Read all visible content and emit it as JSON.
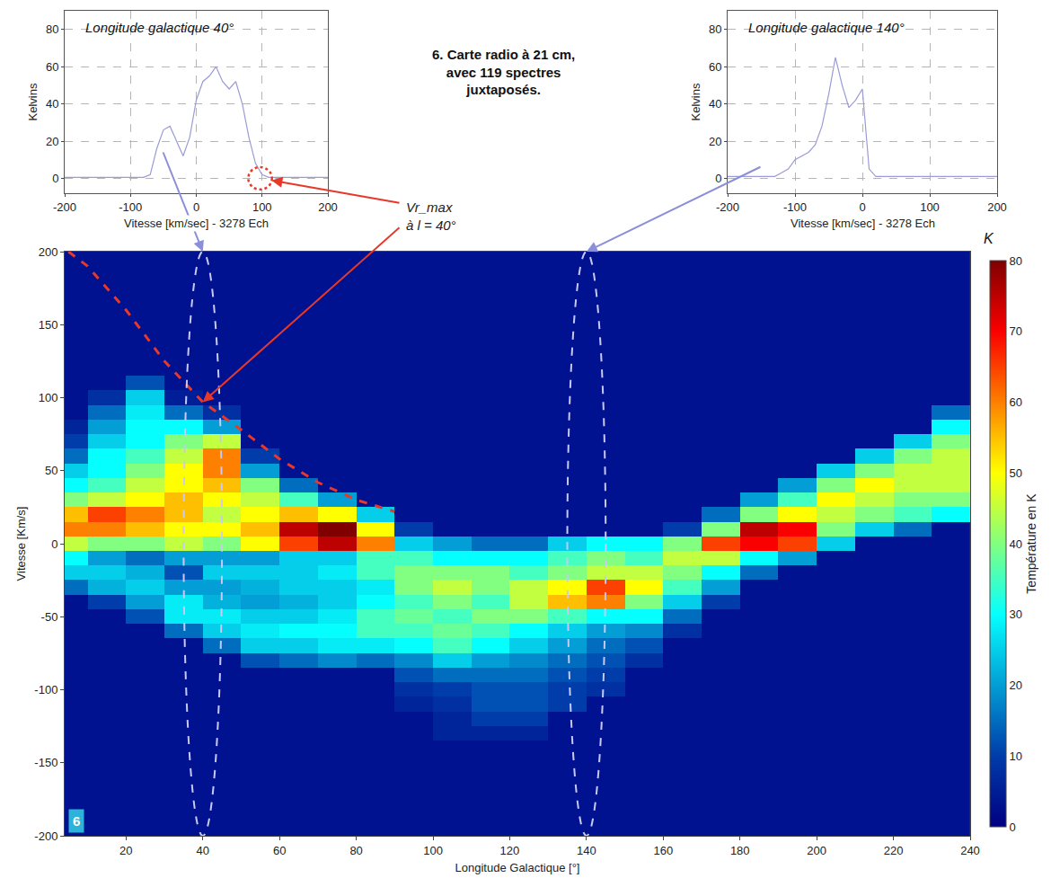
{
  "chart_data": [
    {
      "type": "line",
      "title": "Longitude galactique 40°",
      "longitude": 40,
      "x": [
        -200,
        -190,
        -180,
        -170,
        -160,
        -150,
        -140,
        -130,
        -120,
        -110,
        -100,
        -90,
        -80,
        -70,
        -60,
        -50,
        -40,
        -30,
        -20,
        -10,
        0,
        10,
        20,
        30,
        40,
        50,
        60,
        70,
        80,
        90,
        100,
        110,
        120,
        130,
        140,
        150,
        160,
        170,
        180,
        190,
        200
      ],
      "values": [
        0.5,
        0.5,
        0.5,
        0.5,
        0.5,
        0.5,
        0.5,
        0.5,
        0.5,
        0.5,
        0.5,
        0.5,
        0.5,
        2,
        16,
        26,
        28,
        20,
        12,
        22,
        42,
        52,
        55,
        60,
        52,
        48,
        52,
        40,
        22,
        8,
        2,
        0.5,
        0.5,
        0.5,
        0.5,
        0.5,
        0.5,
        0.5,
        0.5,
        0.5,
        0.5
      ],
      "color": "#9b9bd6",
      "line_style": "solid",
      "xlabel": "Vitesse [km/sec] - 3278 Ech",
      "ylabel": "Kelvins",
      "xlim": [
        -200,
        200
      ],
      "xticks": [
        -200,
        -100,
        0,
        100,
        200
      ],
      "ylim": [
        -8,
        90
      ],
      "yticks": [
        0,
        20,
        40,
        60,
        80
      ],
      "grid": true
    },
    {
      "type": "line",
      "title": "Longitude galactique 140°",
      "longitude": 140,
      "x": [
        -200,
        -190,
        -180,
        -170,
        -160,
        -150,
        -140,
        -130,
        -120,
        -110,
        -100,
        -90,
        -80,
        -70,
        -60,
        -50,
        -40,
        -30,
        -20,
        -10,
        0,
        10,
        20,
        30,
        40,
        50,
        60,
        70,
        80,
        90,
        100,
        110,
        120,
        130,
        140,
        150,
        160,
        170,
        180,
        190,
        200
      ],
      "values": [
        1,
        1,
        1,
        1,
        1,
        1,
        1,
        1,
        3,
        5,
        10,
        12,
        14,
        18,
        28,
        45,
        65,
        50,
        38,
        42,
        48,
        5,
        1,
        1,
        1,
        1,
        1,
        1,
        1,
        1,
        1,
        1,
        1,
        1,
        1,
        1,
        1,
        1,
        1,
        1,
        1
      ],
      "color": "#9b9bd6",
      "line_style": "solid",
      "xlabel": "Vitesse [km/sec] - 3278 Ech",
      "ylabel": "Kelvins",
      "xlim": [
        -200,
        200
      ],
      "xticks": [
        -200,
        -100,
        0,
        100,
        200
      ],
      "ylim": [
        -8,
        90
      ],
      "yticks": [
        0,
        20,
        40,
        60,
        80
      ],
      "grid": true
    },
    {
      "type": "heatmap",
      "title": "6. Carte radio à 21 cm, avec 119 spectres juxtaposés.",
      "xlabel": "Longitude Galactique [°]",
      "ylabel": "Vitesse [Km/s]",
      "xlim": [
        4,
        240
      ],
      "xticks": [
        20,
        40,
        60,
        80,
        100,
        120,
        140,
        160,
        180,
        200,
        220,
        240
      ],
      "ylim": [
        -200,
        200
      ],
      "yticks": [
        -200,
        -150,
        -100,
        -50,
        0,
        50,
        100,
        150,
        200
      ],
      "grid": false,
      "x": [
        5,
        15,
        25,
        35,
        45,
        55,
        65,
        75,
        85,
        95,
        105,
        115,
        125,
        135,
        145,
        155,
        165,
        175,
        185,
        195,
        205,
        215,
        225,
        235
      ],
      "y": [
        -200,
        -190,
        -180,
        -170,
        -160,
        -150,
        -140,
        -130,
        -120,
        -110,
        -100,
        -90,
        -80,
        -70,
        -60,
        -50,
        -40,
        -30,
        -20,
        -10,
        0,
        10,
        20,
        30,
        40,
        50,
        60,
        70,
        80,
        90,
        100,
        110,
        120,
        130,
        140,
        150,
        160,
        170,
        180,
        190,
        200
      ],
      "z": [
        [
          3,
          3,
          3,
          3,
          3,
          3,
          3,
          3,
          3,
          3,
          3,
          3,
          3,
          3,
          3,
          3,
          3,
          3,
          3,
          3,
          3,
          3,
          3,
          3
        ],
        [
          3,
          3,
          3,
          3,
          3,
          3,
          3,
          3,
          3,
          3,
          3,
          3,
          3,
          3,
          3,
          3,
          3,
          3,
          3,
          3,
          3,
          3,
          3,
          3
        ],
        [
          3,
          3,
          3,
          3,
          3,
          3,
          3,
          3,
          3,
          3,
          3,
          3,
          3,
          3,
          3,
          3,
          3,
          3,
          3,
          3,
          3,
          3,
          3,
          3
        ],
        [
          3,
          3,
          3,
          3,
          3,
          3,
          3,
          3,
          3,
          3,
          3,
          3,
          3,
          3,
          3,
          3,
          3,
          3,
          3,
          3,
          3,
          3,
          3,
          3
        ],
        [
          3,
          3,
          3,
          3,
          3,
          3,
          3,
          3,
          3,
          3,
          3,
          3,
          3,
          3,
          3,
          3,
          3,
          3,
          3,
          3,
          3,
          3,
          3,
          3
        ],
        [
          3,
          3,
          3,
          3,
          3,
          3,
          3,
          3,
          3,
          3,
          3,
          3,
          3,
          3,
          3,
          3,
          3,
          3,
          3,
          3,
          3,
          3,
          3,
          3
        ],
        [
          3,
          3,
          3,
          3,
          3,
          3,
          3,
          3,
          3,
          3,
          3,
          3,
          3,
          3,
          3,
          3,
          3,
          3,
          3,
          3,
          3,
          3,
          3,
          3
        ],
        [
          3,
          3,
          3,
          3,
          3,
          3,
          3,
          3,
          3,
          3,
          6,
          6,
          6,
          3,
          3,
          3,
          3,
          3,
          3,
          3,
          3,
          3,
          3,
          3
        ],
        [
          3,
          3,
          3,
          3,
          3,
          3,
          3,
          3,
          3,
          3,
          6,
          10,
          10,
          3,
          3,
          3,
          3,
          3,
          3,
          3,
          3,
          3,
          3,
          3
        ],
        [
          3,
          3,
          3,
          3,
          3,
          3,
          3,
          3,
          3,
          6,
          8,
          12,
          12,
          10,
          3,
          3,
          3,
          3,
          3,
          3,
          3,
          3,
          3,
          3
        ],
        [
          3,
          3,
          3,
          3,
          3,
          3,
          3,
          3,
          3,
          8,
          10,
          12,
          12,
          10,
          8,
          3,
          3,
          3,
          3,
          3,
          3,
          3,
          3,
          3
        ],
        [
          3,
          3,
          3,
          3,
          3,
          3,
          3,
          3,
          3,
          12,
          15,
          15,
          15,
          12,
          10,
          3,
          3,
          3,
          3,
          3,
          3,
          3,
          3,
          3
        ],
        [
          3,
          3,
          3,
          3,
          3,
          12,
          15,
          18,
          15,
          18,
          25,
          20,
          18,
          15,
          12,
          8,
          3,
          3,
          3,
          3,
          3,
          3,
          3,
          3
        ],
        [
          3,
          3,
          3,
          3,
          15,
          25,
          25,
          28,
          28,
          30,
          35,
          30,
          25,
          20,
          15,
          12,
          3,
          3,
          3,
          3,
          3,
          3,
          3,
          3
        ],
        [
          3,
          3,
          3,
          15,
          25,
          28,
          30,
          30,
          35,
          35,
          38,
          35,
          30,
          25,
          20,
          18,
          8,
          3,
          3,
          3,
          3,
          3,
          3,
          3
        ],
        [
          3,
          3,
          12,
          28,
          28,
          25,
          25,
          28,
          35,
          38,
          35,
          40,
          40,
          35,
          30,
          30,
          15,
          3,
          3,
          3,
          3,
          3,
          3,
          3
        ],
        [
          3,
          10,
          20,
          28,
          22,
          20,
          22,
          25,
          30,
          35,
          40,
          35,
          45,
          55,
          60,
          40,
          25,
          10,
          3,
          3,
          3,
          3,
          3,
          3
        ],
        [
          15,
          22,
          25,
          20,
          20,
          22,
          25,
          25,
          28,
          40,
          45,
          40,
          45,
          50,
          65,
          50,
          35,
          20,
          3,
          3,
          3,
          3,
          3,
          3
        ],
        [
          25,
          25,
          22,
          12,
          25,
          25,
          25,
          28,
          35,
          40,
          40,
          40,
          35,
          40,
          45,
          45,
          40,
          30,
          15,
          3,
          3,
          3,
          3,
          3
        ],
        [
          30,
          20,
          15,
          20,
          20,
          20,
          25,
          25,
          35,
          35,
          30,
          30,
          30,
          35,
          40,
          35,
          45,
          45,
          30,
          20,
          3,
          3,
          3,
          3
        ],
        [
          45,
          40,
          40,
          45,
          40,
          50,
          65,
          75,
          60,
          25,
          20,
          15,
          15,
          25,
          30,
          30,
          40,
          65,
          70,
          65,
          25,
          3,
          3,
          3
        ],
        [
          60,
          60,
          55,
          50,
          50,
          55,
          75,
          80,
          50,
          10,
          3,
          3,
          3,
          3,
          3,
          3,
          10,
          40,
          75,
          70,
          40,
          25,
          15,
          3
        ],
        [
          55,
          65,
          60,
          55,
          45,
          50,
          55,
          50,
          25,
          3,
          3,
          3,
          3,
          3,
          3,
          3,
          3,
          15,
          40,
          50,
          45,
          40,
          35,
          30
        ],
        [
          40,
          45,
          50,
          55,
          50,
          45,
          35,
          20,
          3,
          3,
          3,
          3,
          3,
          3,
          3,
          3,
          3,
          3,
          20,
          35,
          50,
          45,
          40,
          40
        ],
        [
          30,
          35,
          45,
          50,
          55,
          40,
          15,
          3,
          3,
          3,
          3,
          3,
          3,
          3,
          3,
          3,
          3,
          3,
          3,
          20,
          40,
          50,
          45,
          45
        ],
        [
          25,
          30,
          40,
          50,
          60,
          20,
          3,
          3,
          3,
          3,
          3,
          3,
          3,
          3,
          3,
          3,
          3,
          3,
          3,
          3,
          25,
          40,
          45,
          45
        ],
        [
          15,
          30,
          35,
          45,
          60,
          10,
          3,
          3,
          3,
          3,
          3,
          3,
          3,
          3,
          3,
          3,
          3,
          3,
          3,
          3,
          3,
          25,
          40,
          45
        ],
        [
          10,
          25,
          30,
          40,
          45,
          3,
          3,
          3,
          3,
          3,
          3,
          3,
          3,
          3,
          3,
          3,
          3,
          3,
          3,
          3,
          3,
          3,
          25,
          40
        ],
        [
          6,
          20,
          30,
          30,
          20,
          3,
          3,
          3,
          3,
          3,
          3,
          3,
          3,
          3,
          3,
          3,
          3,
          3,
          3,
          3,
          3,
          3,
          3,
          30
        ],
        [
          3,
          15,
          28,
          15,
          8,
          3,
          3,
          3,
          3,
          3,
          3,
          3,
          3,
          3,
          3,
          3,
          3,
          3,
          3,
          3,
          3,
          3,
          3,
          15
        ],
        [
          3,
          8,
          25,
          5,
          3,
          3,
          3,
          3,
          3,
          3,
          3,
          3,
          3,
          3,
          3,
          3,
          3,
          3,
          3,
          3,
          3,
          3,
          3,
          3
        ],
        [
          3,
          3,
          12,
          3,
          3,
          3,
          3,
          3,
          3,
          3,
          3,
          3,
          3,
          3,
          3,
          3,
          3,
          3,
          3,
          3,
          3,
          3,
          3,
          3
        ],
        [
          3,
          3,
          3,
          3,
          3,
          3,
          3,
          3,
          3,
          3,
          3,
          3,
          3,
          3,
          3,
          3,
          3,
          3,
          3,
          3,
          3,
          3,
          3,
          3
        ],
        [
          3,
          3,
          3,
          3,
          3,
          3,
          3,
          3,
          3,
          3,
          3,
          3,
          3,
          3,
          3,
          3,
          3,
          3,
          3,
          3,
          3,
          3,
          3,
          3
        ],
        [
          3,
          3,
          3,
          3,
          3,
          3,
          3,
          3,
          3,
          3,
          3,
          3,
          3,
          3,
          3,
          3,
          3,
          3,
          3,
          3,
          3,
          3,
          3,
          3
        ],
        [
          3,
          3,
          3,
          3,
          3,
          3,
          3,
          3,
          3,
          3,
          3,
          3,
          3,
          3,
          3,
          3,
          3,
          3,
          3,
          3,
          3,
          3,
          3,
          3
        ],
        [
          3,
          3,
          3,
          3,
          3,
          3,
          3,
          3,
          3,
          3,
          3,
          3,
          3,
          3,
          3,
          3,
          3,
          3,
          3,
          3,
          3,
          3,
          3,
          3
        ],
        [
          3,
          3,
          3,
          3,
          3,
          3,
          3,
          3,
          3,
          3,
          3,
          3,
          3,
          3,
          3,
          3,
          3,
          3,
          3,
          3,
          3,
          3,
          3,
          3
        ],
        [
          3,
          3,
          3,
          3,
          3,
          3,
          3,
          3,
          3,
          3,
          3,
          3,
          3,
          3,
          3,
          3,
          3,
          3,
          3,
          3,
          3,
          3,
          3,
          3
        ],
        [
          3,
          3,
          3,
          3,
          3,
          3,
          3,
          3,
          3,
          3,
          3,
          3,
          3,
          3,
          3,
          3,
          3,
          3,
          3,
          3,
          3,
          3,
          3,
          3
        ],
        [
          3,
          3,
          3,
          3,
          3,
          3,
          3,
          3,
          3,
          3,
          3,
          3,
          3,
          3,
          3,
          3,
          3,
          3,
          3,
          3,
          3,
          3,
          3,
          3
        ]
      ],
      "colorbar": {
        "title": "Température en K",
        "label": "K",
        "range": [
          0,
          80
        ],
        "ticks": [
          0,
          10,
          20,
          30,
          40,
          50,
          60,
          70,
          80
        ]
      },
      "vr_max_curve": {
        "x": [
          5,
          10,
          20,
          30,
          40,
          50,
          60,
          70,
          80,
          90
        ],
        "y": [
          200,
          190,
          160,
          125,
          97,
          78,
          58,
          42,
          30,
          22
        ],
        "color": "#e8382a",
        "line_style": "dash"
      },
      "annotations": [
        "Vr_max",
        "à l = 40°"
      ],
      "panel_label": "6"
    }
  ]
}
